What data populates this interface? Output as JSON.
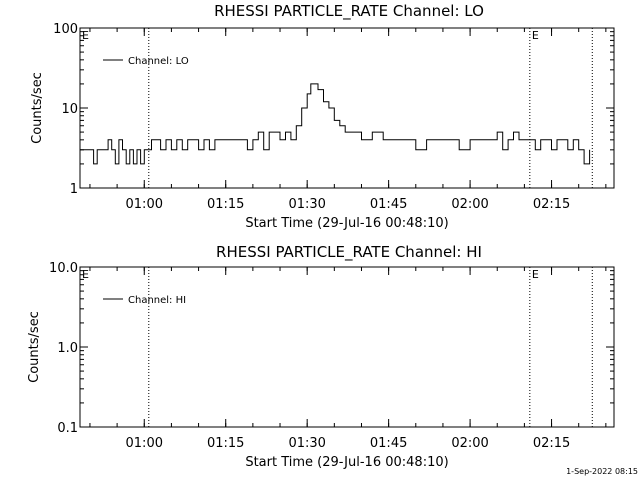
{
  "footer_timestamp": "1-Sep-2022 08:15",
  "chart_data": [
    {
      "type": "line",
      "title": "RHESSI PARTICLE_RATE Channel: LO",
      "xlabel": "Start Time (29-Jul-16 00:48:10)",
      "ylabel": "Counts/sec",
      "y_scale": "log",
      "ylim": [
        1,
        100
      ],
      "y_ticks": [
        1,
        10,
        100
      ],
      "y_tick_labels": [
        "1",
        "10",
        "100"
      ],
      "xlim": [
        "00:48:10",
        "02:26:30"
      ],
      "x_ticks": [
        "01:00",
        "01:15",
        "01:30",
        "01:45",
        "02:00",
        "02:15"
      ],
      "legend": "upper-left",
      "series": [
        {
          "name": "Channel: LO",
          "x": [
            "00:48:10",
            "00:50:00",
            "00:50:40",
            "00:51:20",
            "00:52:00",
            "00:52:40",
            "00:53:20",
            "00:54:00",
            "00:54:40",
            "00:55:20",
            "00:56:00",
            "00:56:40",
            "00:57:20",
            "00:58:00",
            "00:58:40",
            "00:59:20",
            "01:00:00",
            "01:00:40",
            "01:01:20",
            "01:02:00",
            "01:03:00",
            "01:04:00",
            "01:05:00",
            "01:06:00",
            "01:07:00",
            "01:08:00",
            "01:09:00",
            "01:10:00",
            "01:11:00",
            "01:12:00",
            "01:13:00",
            "01:14:00",
            "01:15:00",
            "01:16:00",
            "01:17:00",
            "01:18:00",
            "01:19:00",
            "01:20:00",
            "01:21:00",
            "01:22:00",
            "01:23:00",
            "01:24:00",
            "01:25:00",
            "01:26:00",
            "01:27:00",
            "01:28:00",
            "01:29:00",
            "01:30:00",
            "01:30:40",
            "01:31:20",
            "01:32:00",
            "01:33:00",
            "01:34:00",
            "01:35:00",
            "01:36:00",
            "01:37:00",
            "01:38:00",
            "01:39:00",
            "01:40:00",
            "01:42:00",
            "01:44:00",
            "01:46:00",
            "01:48:00",
            "01:50:00",
            "01:52:00",
            "01:54:00",
            "01:56:00",
            "01:58:00",
            "02:00:00",
            "02:02:00",
            "02:04:00",
            "02:05:00",
            "02:06:00",
            "02:07:00",
            "02:08:00",
            "02:09:00",
            "02:10:00",
            "02:11:00",
            "02:12:00",
            "02:13:00",
            "02:14:00",
            "02:15:00",
            "02:16:00",
            "02:17:00",
            "02:18:00",
            "02:19:00",
            "02:20:00",
            "02:21:00",
            "02:22:00"
          ],
          "y": [
            3,
            3,
            2,
            3,
            3,
            3,
            4,
            3,
            2,
            4,
            3,
            2,
            3,
            2,
            3,
            2,
            3,
            3,
            4,
            4,
            3,
            4,
            3,
            4,
            3,
            4,
            4,
            3,
            4,
            3,
            4,
            4,
            4,
            4,
            4,
            4,
            3,
            4,
            5,
            3,
            5,
            5,
            4,
            5,
            4,
            6,
            10,
            15,
            20,
            20,
            17,
            12,
            10,
            7,
            6,
            5,
            5,
            5,
            4,
            5,
            4,
            4,
            4,
            3,
            4,
            4,
            4,
            3,
            4,
            4,
            4,
            5,
            3,
            4,
            5,
            4,
            4,
            4,
            3,
            4,
            4,
            3,
            4,
            4,
            3,
            4,
            3,
            2,
            3
          ]
        }
      ],
      "markers": [
        {
          "time": "00:48:10",
          "label": "E"
        },
        {
          "time": "02:11:00",
          "label": "E"
        }
      ],
      "vlines": [
        "01:00:50",
        "02:11:00",
        "02:22:30"
      ]
    },
    {
      "type": "line",
      "title": "RHESSI PARTICLE_RATE Channel: HI",
      "xlabel": "Start Time (29-Jul-16 00:48:10)",
      "ylabel": "Counts/sec",
      "y_scale": "log",
      "ylim": [
        0.1,
        10
      ],
      "y_ticks": [
        0.1,
        1,
        10
      ],
      "y_tick_labels": [
        "0.1",
        "1.0",
        "10.0"
      ],
      "xlim": [
        "00:48:10",
        "02:26:30"
      ],
      "x_ticks": [
        "01:00",
        "01:15",
        "01:30",
        "01:45",
        "02:00",
        "02:15"
      ],
      "legend": "upper-left",
      "series": [
        {
          "name": "Channel: HI",
          "x": [],
          "y": []
        }
      ],
      "markers": [
        {
          "time": "00:48:10",
          "label": "E"
        },
        {
          "time": "02:11:00",
          "label": "E"
        }
      ],
      "vlines": [
        "01:00:50",
        "02:11:00",
        "02:22:30"
      ]
    }
  ]
}
